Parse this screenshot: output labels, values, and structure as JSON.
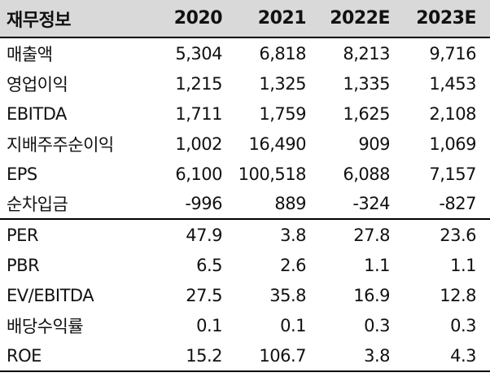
{
  "header": {
    "label": "재무정보",
    "years": [
      "2020",
      "2021",
      "2022E",
      "2023E"
    ]
  },
  "rows": [
    {
      "label": "매출액",
      "values": [
        "5,304",
        "6,818",
        "8,213",
        "9,716"
      ]
    },
    {
      "label": "영업이익",
      "values": [
        "1,215",
        "1,325",
        "1,335",
        "1,453"
      ]
    },
    {
      "label": "EBITDA",
      "values": [
        "1,711",
        "1,759",
        "1,625",
        "2,108"
      ]
    },
    {
      "label": "지배주주순이익",
      "values": [
        "1,002",
        "16,490",
        "909",
        "1,069"
      ]
    },
    {
      "label": "EPS",
      "values": [
        "6,100",
        "100,518",
        "6,088",
        "7,157"
      ]
    },
    {
      "label": "순차입금",
      "values": [
        "-996",
        "889",
        "-324",
        "-827"
      ]
    },
    {
      "label": "PER",
      "values": [
        "47.9",
        "3.8",
        "27.8",
        "23.6"
      ]
    },
    {
      "label": "PBR",
      "values": [
        "6.5",
        "2.6",
        "1.1",
        "1.1"
      ]
    },
    {
      "label": "EV/EBITDA",
      "values": [
        "27.5",
        "35.8",
        "16.9",
        "12.8"
      ]
    },
    {
      "label": "배당수익률",
      "values": [
        "0.1",
        "0.1",
        "0.3",
        "0.3"
      ]
    },
    {
      "label": "ROE",
      "values": [
        "15.2",
        "106.7",
        "3.8",
        "4.3"
      ]
    }
  ]
}
